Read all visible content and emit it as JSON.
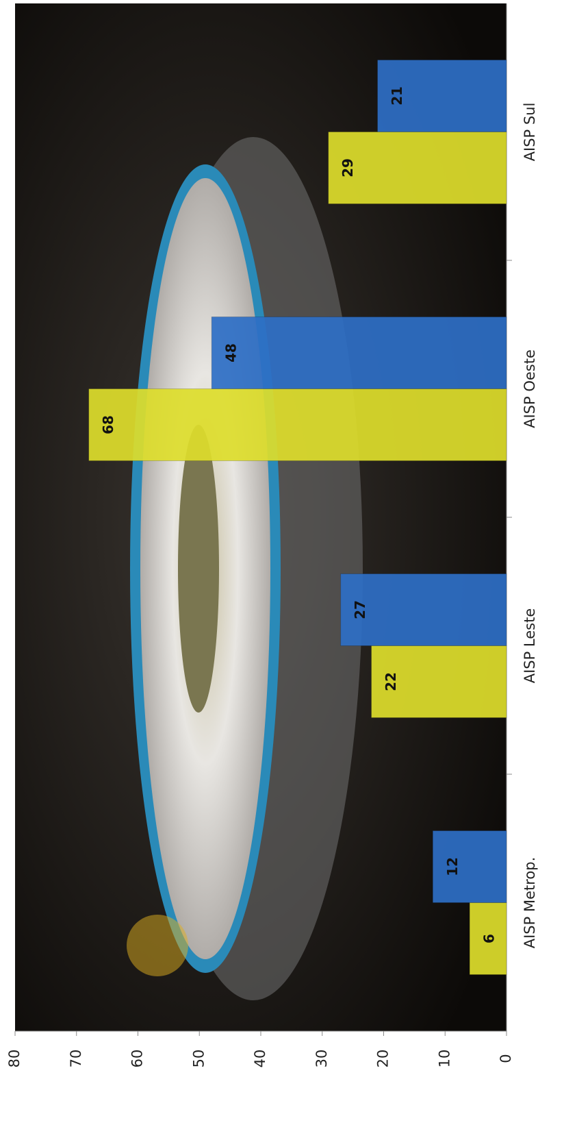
{
  "chart_data": {
    "type": "bar",
    "orientation": "rotated",
    "categories": [
      "AISP Metrop.",
      "AISP Leste",
      "AISP Oeste",
      "AISP Sul"
    ],
    "series": [
      {
        "color": "#dede2c",
        "values": [
          6,
          22,
          68,
          29
        ]
      },
      {
        "color": "#2e6fc6",
        "values": [
          12,
          27,
          48,
          21
        ]
      }
    ],
    "ylim": [
      0,
      80
    ],
    "yticks": [
      0,
      10,
      20,
      30,
      40,
      50,
      60,
      70,
      80
    ]
  }
}
